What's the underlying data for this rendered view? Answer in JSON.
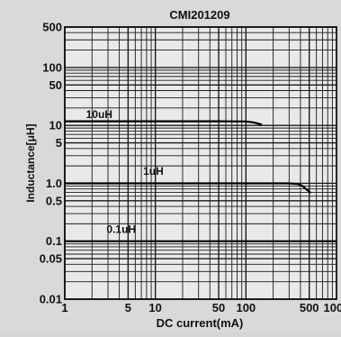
{
  "chart_data": {
    "type": "line",
    "title": "CMI201209",
    "xlabel": "DC current(mA)",
    "ylabel": "Inductance[μH]",
    "xscale": "log",
    "yscale": "log",
    "xlim": [
      1,
      1000
    ],
    "ylim": [
      0.01,
      500
    ],
    "grid": true,
    "x_tick_labels": [
      {
        "value": 1,
        "label": "1"
      },
      {
        "value": 5,
        "label": "5"
      },
      {
        "value": 10,
        "label": "10"
      },
      {
        "value": 50,
        "label": "50"
      },
      {
        "value": 100,
        "label": "100"
      },
      {
        "value": 500,
        "label": "500"
      },
      {
        "value": 1000,
        "label": "1000"
      }
    ],
    "y_tick_labels": [
      {
        "value": 0.01,
        "label": "0.01"
      },
      {
        "value": 0.05,
        "label": "0.05"
      },
      {
        "value": 0.1,
        "label": "0.1"
      },
      {
        "value": 0.5,
        "label": "0.5"
      },
      {
        "value": 1,
        "label": "1.0"
      },
      {
        "value": 5,
        "label": "5"
      },
      {
        "value": 10,
        "label": "10"
      },
      {
        "value": 50,
        "label": "50"
      },
      {
        "value": 100,
        "label": "100"
      },
      {
        "value": 500,
        "label": "500"
      }
    ],
    "series": [
      {
        "name": "10uH",
        "label_at": {
          "x": 2.4,
          "y": 13.5
        },
        "x": [
          1,
          50,
          100,
          120,
          135,
          150
        ],
        "y": [
          11.8,
          11.8,
          11.7,
          11.3,
          10.8,
          10.3
        ]
      },
      {
        "name": "1uH",
        "label_at": {
          "x": 9.5,
          "y": 1.4
        },
        "x": [
          1,
          100,
          300,
          380,
          420,
          460,
          520
        ],
        "y": [
          1.0,
          1.0,
          1.0,
          0.97,
          0.9,
          0.8,
          0.68
        ]
      },
      {
        "name": "0.1uH",
        "label_at": {
          "x": 4.2,
          "y": 0.14
        },
        "x": [
          1,
          100,
          1000
        ],
        "y": [
          0.1,
          0.1,
          0.1
        ]
      }
    ]
  }
}
